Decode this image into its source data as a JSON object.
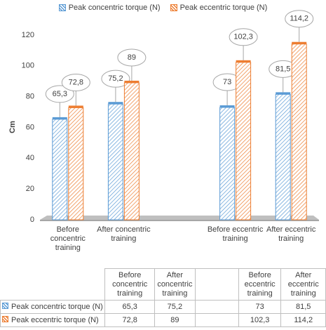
{
  "chart_data": {
    "type": "bar",
    "y_label": "Cm",
    "categories": [
      "Before concentric training",
      "After concentric training",
      null,
      "Before eccentric training",
      "After eccentric training"
    ],
    "series": [
      {
        "name": "Peak concentric torque (N)",
        "color": "#5b9bd5",
        "values": [
          65.3,
          75.2,
          null,
          73,
          81.5
        ],
        "value_labels": [
          "65,3",
          "75,2",
          null,
          "73",
          "81,5"
        ]
      },
      {
        "name": "Peak eccentric torque (N)",
        "color": "#ed7d31",
        "values": [
          72.8,
          89,
          null,
          102.3,
          114.2
        ],
        "value_labels": [
          "72,8",
          "89",
          null,
          "102,3",
          "114,2"
        ]
      }
    ],
    "ylim": [
      0,
      120
    ],
    "yticks": [
      0,
      20,
      40,
      60,
      80,
      100,
      120
    ],
    "grid": false
  }
}
